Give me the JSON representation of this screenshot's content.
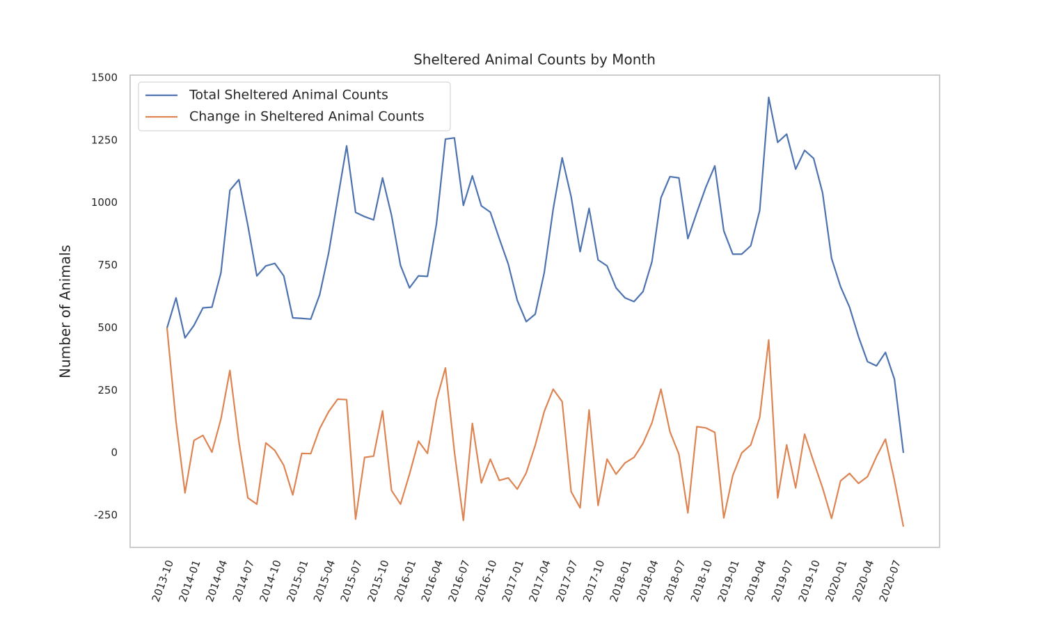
{
  "chart_data": {
    "type": "line",
    "title": "Sheltered Animal Counts by Month",
    "ylabel": "Number of Animals",
    "x": [
      "2013-10",
      "2013-11",
      "2013-12",
      "2014-01",
      "2014-02",
      "2014-03",
      "2014-04",
      "2014-05",
      "2014-06",
      "2014-07",
      "2014-08",
      "2014-09",
      "2014-10",
      "2014-11",
      "2014-12",
      "2015-01",
      "2015-02",
      "2015-03",
      "2015-04",
      "2015-05",
      "2015-06",
      "2015-07",
      "2015-08",
      "2015-09",
      "2015-10",
      "2015-11",
      "2015-12",
      "2016-01",
      "2016-02",
      "2016-03",
      "2016-04",
      "2016-05",
      "2016-06",
      "2016-07",
      "2016-08",
      "2016-09",
      "2016-10",
      "2016-11",
      "2016-12",
      "2017-01",
      "2017-02",
      "2017-03",
      "2017-04",
      "2017-05",
      "2017-06",
      "2017-07",
      "2017-08",
      "2017-09",
      "2017-10",
      "2017-11",
      "2017-12",
      "2018-01",
      "2018-02",
      "2018-03",
      "2018-04",
      "2018-05",
      "2018-06",
      "2018-07",
      "2018-08",
      "2018-09",
      "2018-10",
      "2018-11",
      "2018-12",
      "2019-01",
      "2019-02",
      "2019-03",
      "2019-04",
      "2019-05",
      "2019-06",
      "2019-07",
      "2019-08",
      "2019-09",
      "2019-10",
      "2019-11",
      "2019-12",
      "2020-01",
      "2020-02",
      "2020-03",
      "2020-04",
      "2020-05",
      "2020-06",
      "2020-07",
      "2020-08"
    ],
    "xticks": [
      "2013-10",
      "2014-01",
      "2014-04",
      "2014-07",
      "2014-10",
      "2015-01",
      "2015-04",
      "2015-07",
      "2015-10",
      "2016-01",
      "2016-04",
      "2016-07",
      "2016-10",
      "2017-01",
      "2017-04",
      "2017-07",
      "2017-10",
      "2018-01",
      "2018-04",
      "2018-07",
      "2018-10",
      "2019-01",
      "2019-04",
      "2019-07",
      "2019-10",
      "2020-01",
      "2020-04",
      "2020-07"
    ],
    "series": [
      {
        "name": "Total Sheltered Animal Counts",
        "color": "#4c72b0",
        "values": [
          500,
          620,
          460,
          510,
          580,
          583,
          720,
          1050,
          1093,
          910,
          708,
          748,
          758,
          708,
          540,
          538,
          535,
          633,
          800,
          1015,
          1228,
          962,
          945,
          932,
          1100,
          950,
          750,
          660,
          708,
          706,
          915,
          1255,
          1260,
          990,
          1108,
          988,
          963,
          857,
          755,
          610,
          525,
          555,
          720,
          975,
          1180,
          1025,
          805,
          978,
          772,
          748,
          660,
          620,
          605,
          645,
          765,
          1020,
          1105,
          1100,
          857,
          962,
          1063,
          1148,
          888,
          795,
          795,
          828,
          970,
          1422,
          1242,
          1275,
          1135,
          1210,
          1178,
          1040,
          778,
          665,
          583,
          465,
          365,
          348,
          402,
          295,
          0
        ]
      },
      {
        "name": "Change in Sheltered Animal Counts",
        "color": "#dd8452",
        "values": [
          500,
          125,
          -160,
          50,
          70,
          3,
          135,
          330,
          45,
          -180,
          -205,
          40,
          10,
          -50,
          -168,
          -2,
          -3,
          97,
          165,
          215,
          213,
          -265,
          -18,
          -13,
          168,
          -150,
          -205,
          -85,
          47,
          -2,
          210,
          340,
          5,
          -270,
          118,
          -120,
          -25,
          -110,
          -100,
          -145,
          -80,
          30,
          165,
          255,
          205,
          -155,
          -220,
          172,
          -210,
          -25,
          -85,
          -40,
          -18,
          38,
          120,
          255,
          85,
          -5,
          -240,
          105,
          100,
          82,
          -260,
          -90,
          0,
          32,
          142,
          452,
          -180,
          32,
          -140,
          75,
          -35,
          -140,
          -262,
          -112,
          -82,
          -122,
          -95,
          -15,
          55,
          -110,
          -295
        ]
      }
    ],
    "ylim": [
      -378,
      1511
    ],
    "yticks": [
      -250,
      0,
      250,
      500,
      750,
      1000,
      1250,
      1500
    ],
    "grid": false,
    "legend": "upper left"
  }
}
